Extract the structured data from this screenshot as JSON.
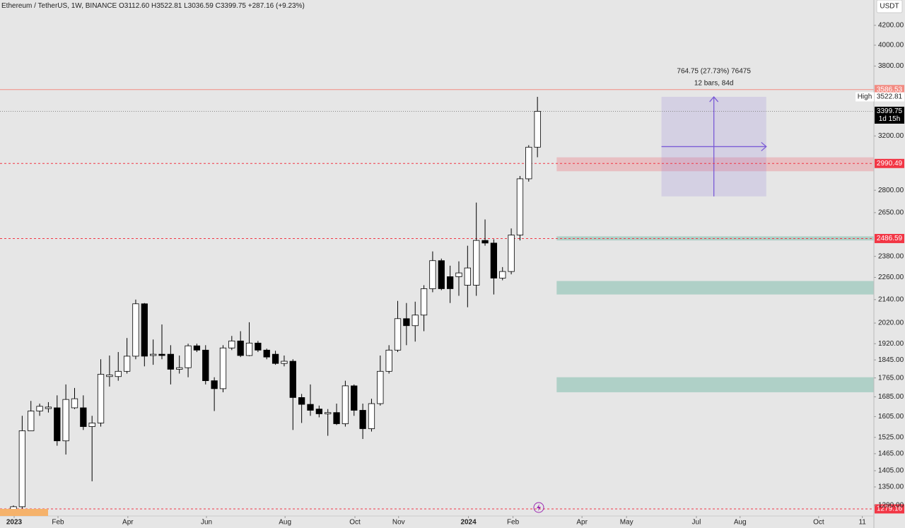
{
  "header": {
    "symbol": "Ethereum / TetherUS, 1W, BINANCE",
    "open": "O3112.60",
    "high": "H3522.81",
    "low": "L3036.59",
    "close": "C3399.75",
    "change": "+287.16 (+9.23%)"
  },
  "currency": "USDT",
  "chart_data": {
    "type": "candlestick",
    "log": true,
    "categories": [
      null,
      null,
      null,
      null,
      null,
      null,
      null,
      null,
      null,
      null,
      null,
      null,
      null,
      null,
      null,
      null,
      null,
      null,
      null,
      null,
      null,
      null,
      null,
      null,
      null,
      null,
      null,
      null,
      null,
      null,
      null,
      null,
      null,
      null,
      null,
      null,
      null,
      null,
      null,
      null,
      null,
      null,
      null,
      null,
      null,
      null,
      null,
      null,
      null,
      null,
      null,
      null,
      null,
      null,
      null,
      null,
      null,
      null,
      null,
      null,
      null
    ],
    "open": [
      1269,
      1286,
      1550,
      1627,
      1637,
      1640,
      1512,
      1640,
      1640,
      1566,
      1580,
      1771,
      1771,
      1794,
      1862,
      2118,
      1865,
      1871,
      1871,
      1803,
      1810,
      1910,
      1890,
      1753,
      1719,
      1900,
      1933,
      1865,
      1923,
      1890,
      1871,
      1829,
      1839,
      1682,
      1654,
      1635,
      1616,
      1621,
      1577,
      1731,
      1630,
      1558,
      1657,
      1794,
      1890,
      2042,
      2007,
      2060,
      2198,
      2355,
      2264,
      2264,
      2217,
      2217,
      2475,
      2459,
      2256,
      2293,
      2508,
      2880,
      3112.6
    ],
    "high": [
      1290,
      1608,
      1668,
      1657,
      1663,
      1691,
      1737,
      1722,
      1691,
      1608,
      1848,
      1865,
      1881,
      1947,
      2140,
      2122,
      1940,
      2013,
      1913,
      1865,
      1920,
      1920,
      1913,
      1768,
      1913,
      1957,
      1980,
      2024,
      1933,
      1897,
      1887,
      1865,
      1848,
      1697,
      1737,
      1649,
      1635,
      1657,
      1753,
      1737,
      1657,
      1677,
      1865,
      1913,
      2133,
      2122,
      2129,
      2217,
      2409,
      2367,
      2326,
      2351,
      2443,
      2716,
      2606,
      2482,
      2318,
      2549,
      2900,
      3128,
      3522.81
    ],
    "low": [
      1265,
      1280,
      1550,
      1608,
      1621,
      1494,
      1462,
      1635,
      1553,
      1369,
      1566,
      1728,
      1753,
      1784,
      1848,
      1816,
      1823,
      1848,
      1737,
      1784,
      1768,
      1881,
      1737,
      1627,
      1704,
      1890,
      1858,
      1862,
      1881,
      1848,
      1823,
      1816,
      1553,
      1580,
      1608,
      1602,
      1531,
      1572,
      1566,
      1608,
      1519,
      1547,
      1649,
      1784,
      1881,
      1913,
      1930,
      1980,
      2179,
      2190,
      2122,
      2160,
      2100,
      2160,
      2443,
      2167,
      2244,
      2277,
      2475,
      2860,
      3036.59
    ],
    "close": [
      1286,
      1550,
      1627,
      1646,
      1643,
      1512,
      1674,
      1677,
      1566,
      1580,
      1781,
      1778,
      1794,
      1862,
      2118,
      1862,
      1871,
      1865,
      1803,
      1810,
      1910,
      1890,
      1753,
      1719,
      1900,
      1933,
      1865,
      1923,
      1890,
      1858,
      1829,
      1839,
      1682,
      1654,
      1630,
      1616,
      1621,
      1577,
      1731,
      1630,
      1558,
      1657,
      1794,
      1890,
      2042,
      2007,
      2060,
      2198,
      2355,
      2198,
      2198,
      2285,
      2313,
      2475,
      2459,
      2256,
      2293,
      2508,
      2880,
      3112.6,
      3399.75
    ],
    "up_color": "#ffffff",
    "down_color": "#000000",
    "xlim": [
      -1.54,
      98.2
    ],
    "xticks": [
      {
        "value": 0.08,
        "label": "2023"
      },
      {
        "value": 5.1,
        "label": "Feb"
      },
      {
        "value": 13.1,
        "label": "Apr"
      },
      {
        "value": 22.1,
        "label": "Jun"
      },
      {
        "value": 31.1,
        "label": "Aug"
      },
      {
        "value": 39.1,
        "label": "Oct"
      },
      {
        "value": 44.1,
        "label": "Nov"
      },
      {
        "value": 52.1,
        "label": "2024"
      },
      {
        "value": 57.2,
        "label": "Feb"
      },
      {
        "value": 65.1,
        "label": "Apr"
      },
      {
        "value": 70.2,
        "label": "May"
      },
      {
        "value": 78.2,
        "label": "Jul"
      },
      {
        "value": 83.2,
        "label": "Aug"
      },
      {
        "value": 92.2,
        "label": "Oct"
      },
      {
        "value": 97.2,
        "label": "11"
      }
    ],
    "ylim": [
      1257,
      4470
    ],
    "yticks": [
      {
        "value": 4200,
        "label": "4200.00"
      },
      {
        "value": 4000,
        "label": "4000.00"
      },
      {
        "value": 3800,
        "label": "3800.00"
      },
      {
        "value": 3200,
        "label": "3200.00"
      },
      {
        "value": 2800,
        "label": "2800.00"
      },
      {
        "value": 2650,
        "label": "2650.00"
      },
      {
        "value": 2380,
        "label": "2380.00"
      },
      {
        "value": 2260,
        "label": "2260.00"
      },
      {
        "value": 2140,
        "label": "2140.00"
      },
      {
        "value": 2020,
        "label": "2020.00"
      },
      {
        "value": 1920,
        "label": "1920.00"
      },
      {
        "value": 1845,
        "label": "1845.00"
      },
      {
        "value": 1765,
        "label": "1765.00"
      },
      {
        "value": 1685,
        "label": "1685.00"
      },
      {
        "value": 1605,
        "label": "1605.00"
      },
      {
        "value": 1525,
        "label": "1525.00"
      },
      {
        "value": 1465,
        "label": "1465.00"
      },
      {
        "value": 1405,
        "label": "1405.00"
      },
      {
        "value": 1350,
        "label": "1350.00"
      },
      {
        "value": 1290,
        "label": "1290.00"
      }
    ],
    "levels": [
      {
        "value": 3586.53,
        "label": "3586.53",
        "style": "solid",
        "color": "#f28b82"
      },
      {
        "value": 3399.75,
        "label": "3399.75",
        "style": "dotted",
        "color": "#888888",
        "tag": "1d 15h"
      },
      {
        "value": 2990.49,
        "label": "2990.49",
        "style": "dashed",
        "color": "#f23645"
      },
      {
        "value": 2486.59,
        "label": "2486.59",
        "style": "dashed",
        "color": "#f23645"
      },
      {
        "value": 1279.16,
        "label": "1279.16",
        "style": "dashed",
        "color": "#f23645"
      }
    ],
    "high_marker": {
      "name": "High",
      "value": 3522.81,
      "label": "3522.81"
    },
    "zones": [
      {
        "from": 2934,
        "to": 3036,
        "start": 62.2,
        "color": "rgba(242,54,69,0.22)"
      },
      {
        "from": 2475,
        "to": 2500,
        "start": 62.2,
        "color": "rgba(34,150,120,0.28)"
      },
      {
        "from": 2167,
        "to": 2240,
        "start": 62.2,
        "color": "rgba(34,150,120,0.28)"
      },
      {
        "from": 1704,
        "to": 1768,
        "start": 62.2,
        "color": "rgba(34,150,120,0.28)"
      }
    ],
    "measure": {
      "x0": 74.2,
      "x1": 86.2,
      "top": 3522.81,
      "bottom": 2758.06,
      "line1": "764.75 (27.73%) 76475",
      "line2": "12 bars, 84d",
      "color": "#7b5bd6"
    }
  }
}
